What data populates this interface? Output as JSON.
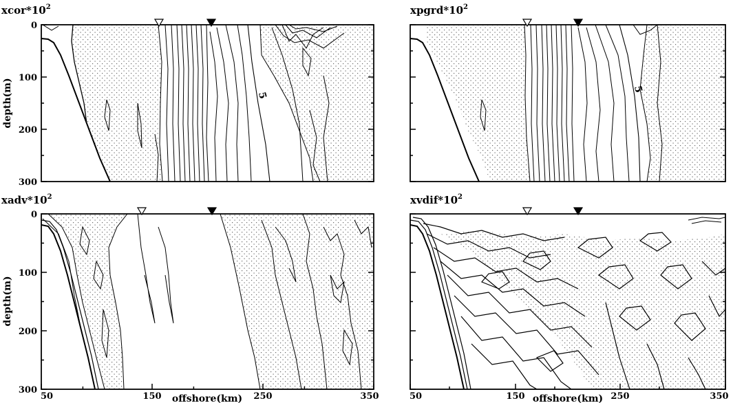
{
  "chart_data": [
    {
      "type": "contour",
      "title": "xcor*10",
      "title_superscript": "2",
      "ylabel": "depth(m)",
      "xlabel": "",
      "xlim": [
        50,
        350
      ],
      "ylim": [
        300,
        0
      ],
      "yticks": [
        "0",
        "100",
        "200",
        "300"
      ],
      "xticks": [],
      "markers": [
        {
          "x": 162,
          "style": "open-triangle"
        },
        {
          "x": 215,
          "style": "filled-triangle"
        }
      ],
      "contour_labels": [
        {
          "text": "5",
          "x": 237,
          "y": 128
        }
      ],
      "grid": false,
      "shading": "stippled positive regions"
    },
    {
      "type": "contour",
      "title": "xpgrd*10",
      "title_superscript": "2",
      "ylabel": "",
      "xlabel": "",
      "xlim": [
        50,
        350
      ],
      "ylim": [
        300,
        0
      ],
      "yticks": [],
      "xticks": [],
      "markers": [
        {
          "x": 162,
          "style": "open-triangle"
        },
        {
          "x": 215,
          "style": "filled-triangle"
        }
      ],
      "contour_labels": [
        {
          "text": "5",
          "x": 273,
          "y": 115
        }
      ],
      "grid": false,
      "shading": "stippled positive regions"
    },
    {
      "type": "contour",
      "title": "xadv*10",
      "title_superscript": "2",
      "ylabel": "depth(m)",
      "xlabel": "offshore(km)",
      "xlim": [
        50,
        350
      ],
      "ylim": [
        300,
        0
      ],
      "yticks": [
        "0",
        "100",
        "200",
        "300"
      ],
      "xticks": [
        "50",
        "150",
        "250",
        "350"
      ],
      "markers": [
        {
          "x": 162,
          "style": "open-triangle"
        },
        {
          "x": 215,
          "style": "filled-triangle"
        }
      ],
      "contour_labels": [],
      "grid": false,
      "shading": "stippled positive regions"
    },
    {
      "type": "contour",
      "title": "xvdif*10",
      "title_superscript": "2",
      "ylabel": "",
      "xlabel": "offshore(km)",
      "xlim": [
        50,
        350
      ],
      "ylim": [
        300,
        0
      ],
      "yticks": [],
      "xticks": [
        "50",
        "150",
        "250",
        "350"
      ],
      "markers": [
        {
          "x": 162,
          "style": "open-triangle"
        },
        {
          "x": 215,
          "style": "filled-triangle"
        }
      ],
      "contour_labels": [],
      "grid": false,
      "shading": "stippled positive regions"
    }
  ]
}
